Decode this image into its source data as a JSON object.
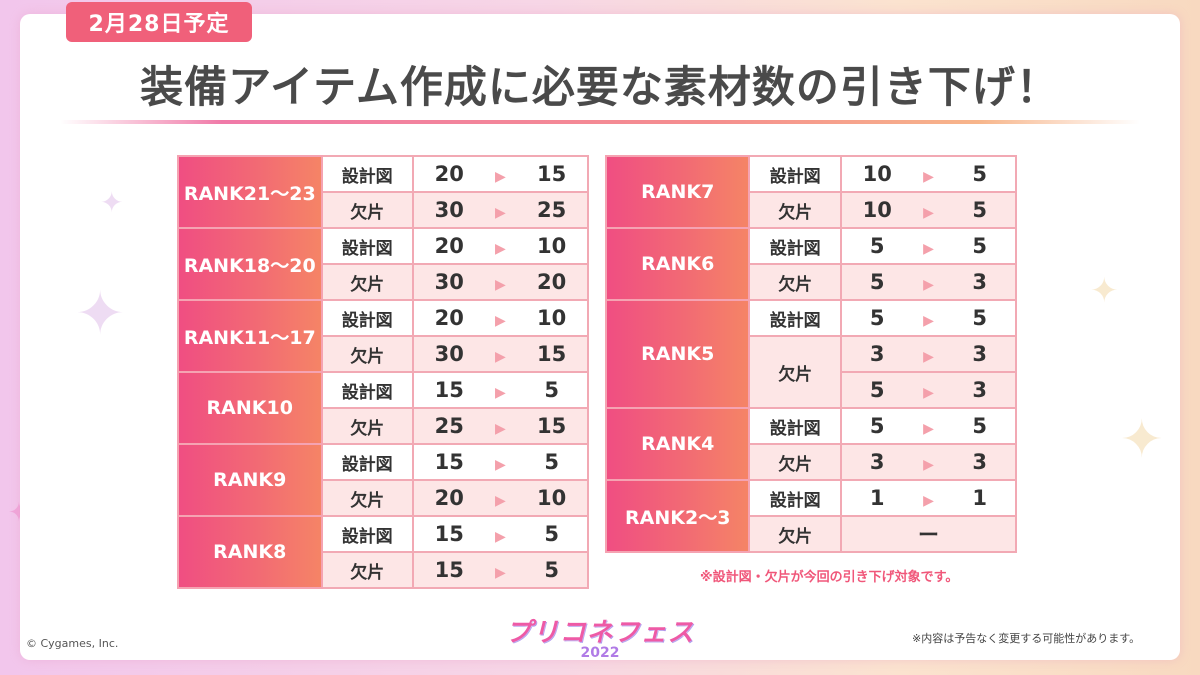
{
  "date_badge": "2月28日予定",
  "headline": "装備アイテム作成に必要な素材数の引き下げ！",
  "arrow_glyph": "▶",
  "left_table": [
    {
      "rank": "RANK21～23",
      "rows": [
        {
          "material": "設計図",
          "before": "20",
          "after": "15"
        },
        {
          "material": "欠片",
          "before": "30",
          "after": "25"
        }
      ]
    },
    {
      "rank": "RANK18～20",
      "rows": [
        {
          "material": "設計図",
          "before": "20",
          "after": "10"
        },
        {
          "material": "欠片",
          "before": "30",
          "after": "20"
        }
      ]
    },
    {
      "rank": "RANK11～17",
      "rows": [
        {
          "material": "設計図",
          "before": "20",
          "after": "10"
        },
        {
          "material": "欠片",
          "before": "30",
          "after": "15"
        }
      ]
    },
    {
      "rank": "RANK10",
      "rows": [
        {
          "material": "設計図",
          "before": "15",
          "after": "5"
        },
        {
          "material": "欠片",
          "before": "25",
          "after": "15"
        }
      ]
    },
    {
      "rank": "RANK9",
      "rows": [
        {
          "material": "設計図",
          "before": "15",
          "after": "5"
        },
        {
          "material": "欠片",
          "before": "20",
          "after": "10"
        }
      ]
    },
    {
      "rank": "RANK8",
      "rows": [
        {
          "material": "設計図",
          "before": "15",
          "after": "5"
        },
        {
          "material": "欠片",
          "before": "15",
          "after": "5"
        }
      ]
    }
  ],
  "right_table": {
    "rank7": {
      "rank": "RANK7",
      "rows": [
        {
          "material": "設計図",
          "before": "10",
          "after": "5"
        },
        {
          "material": "欠片",
          "before": "10",
          "after": "5"
        }
      ]
    },
    "rank6": {
      "rank": "RANK6",
      "rows": [
        {
          "material": "設計図",
          "before": "5",
          "after": "5"
        },
        {
          "material": "欠片",
          "before": "5",
          "after": "3"
        }
      ]
    },
    "rank5": {
      "rank": "RANK5",
      "blueprint": {
        "material": "設計図",
        "before": "5",
        "after": "5"
      },
      "fragment_label": "欠片",
      "fragment_rows": [
        {
          "before": "3",
          "after": "3"
        },
        {
          "before": "5",
          "after": "3"
        }
      ]
    },
    "rank4": {
      "rank": "RANK4",
      "rows": [
        {
          "material": "設計図",
          "before": "5",
          "after": "5"
        },
        {
          "material": "欠片",
          "before": "3",
          "after": "3"
        }
      ]
    },
    "rank2_3": {
      "rank": "RANK2～3",
      "blueprint": {
        "material": "設計図",
        "before": "1",
        "after": "1"
      },
      "fragment": {
        "material": "欠片",
        "value": "ー"
      }
    }
  },
  "note": "※設計図・欠片が今回の引き下げ対象です。",
  "copyright": "© Cygames, Inc.",
  "disclaimer": "※内容は予告なく変更する可能性があります。",
  "logo": {
    "line1": "プリコネフェス",
    "line2": "2022"
  },
  "colors": {
    "accent_pink": "#f0607a",
    "row_tint": "#fde6e6",
    "border": "#f2a9b4"
  }
}
